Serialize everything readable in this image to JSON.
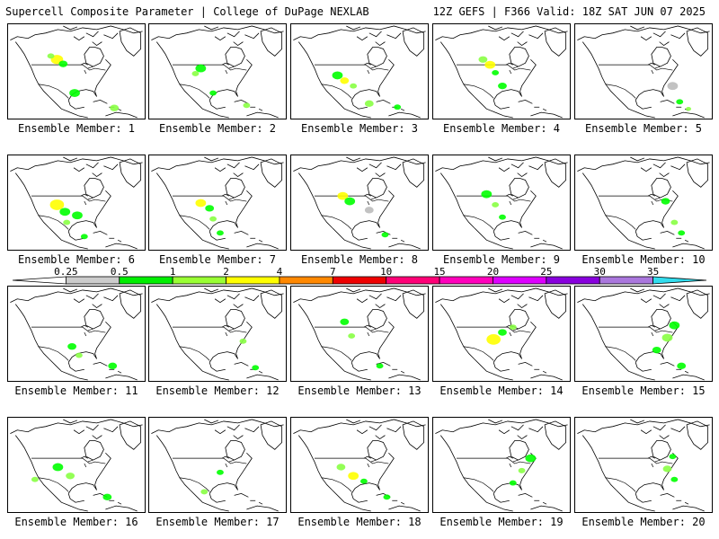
{
  "header": {
    "left": "Supercell Composite Parameter | College of DuPage NEXLAB",
    "right": "12Z GEFS | F366 Valid: 18Z SAT JUN 07 2025"
  },
  "member_label_prefix": "Ensemble Member: ",
  "members": [
    {
      "n": "1",
      "blobs": [
        [
          55,
          40,
          7,
          "#ffff00"
        ],
        [
          62,
          45,
          5,
          "#00ff00"
        ],
        [
          48,
          36,
          4,
          "#88ff44"
        ],
        [
          75,
          78,
          6,
          "#00ff00"
        ],
        [
          120,
          95,
          5,
          "#88ff44"
        ]
      ]
    },
    {
      "n": "2",
      "blobs": [
        [
          58,
          50,
          6,
          "#00ff00"
        ],
        [
          52,
          56,
          4,
          "#88ff44"
        ],
        [
          72,
          78,
          4,
          "#00ff00"
        ],
        [
          110,
          92,
          4,
          "#88ff44"
        ]
      ]
    },
    {
      "n": "3",
      "blobs": [
        [
          52,
          58,
          6,
          "#00ff00"
        ],
        [
          60,
          64,
          5,
          "#ffff00"
        ],
        [
          70,
          70,
          4,
          "#88ff44"
        ],
        [
          88,
          90,
          5,
          "#88ff44"
        ],
        [
          120,
          94,
          4,
          "#00ff00"
        ]
      ]
    },
    {
      "n": "4",
      "blobs": [
        [
          56,
          40,
          5,
          "#88ff44"
        ],
        [
          64,
          46,
          6,
          "#ffff00"
        ],
        [
          70,
          55,
          4,
          "#00ff00"
        ],
        [
          78,
          70,
          5,
          "#00ff00"
        ]
      ]
    },
    {
      "n": "5",
      "blobs": [
        [
          110,
          70,
          6,
          "#bbbbbb"
        ],
        [
          118,
          88,
          4,
          "#00ff00"
        ],
        [
          128,
          96,
          3,
          "#88ff44"
        ]
      ]
    },
    {
      "n": "6",
      "blobs": [
        [
          55,
          56,
          8,
          "#ffff00"
        ],
        [
          64,
          64,
          6,
          "#00ff00"
        ],
        [
          78,
          68,
          6,
          "#00ff00"
        ],
        [
          66,
          76,
          4,
          "#88ff44"
        ],
        [
          86,
          92,
          4,
          "#00ff00"
        ]
      ]
    },
    {
      "n": "7",
      "blobs": [
        [
          58,
          54,
          6,
          "#ffff00"
        ],
        [
          68,
          60,
          5,
          "#00ff00"
        ],
        [
          72,
          72,
          4,
          "#88ff44"
        ],
        [
          80,
          88,
          4,
          "#00ff00"
        ]
      ]
    },
    {
      "n": "8",
      "blobs": [
        [
          58,
          46,
          6,
          "#ffff00"
        ],
        [
          66,
          52,
          6,
          "#00ff00"
        ],
        [
          88,
          62,
          5,
          "#bbbbbb"
        ],
        [
          106,
          90,
          4,
          "#00ff00"
        ]
      ]
    },
    {
      "n": "9",
      "blobs": [
        [
          60,
          44,
          6,
          "#00ff00"
        ],
        [
          70,
          56,
          4,
          "#88ff44"
        ],
        [
          78,
          70,
          4,
          "#00ff00"
        ]
      ]
    },
    {
      "n": "10",
      "blobs": [
        [
          102,
          52,
          5,
          "#00ff00"
        ],
        [
          112,
          76,
          4,
          "#88ff44"
        ],
        [
          120,
          88,
          4,
          "#00ff00"
        ]
      ]
    },
    {
      "n": "11",
      "blobs": [
        [
          72,
          68,
          5,
          "#00ff00"
        ],
        [
          80,
          78,
          4,
          "#88ff44"
        ],
        [
          118,
          90,
          5,
          "#00ff00"
        ]
      ]
    },
    {
      "n": "12",
      "blobs": [
        [
          106,
          62,
          4,
          "#88ff44"
        ],
        [
          120,
          92,
          4,
          "#00ff00"
        ]
      ]
    },
    {
      "n": "13",
      "blobs": [
        [
          60,
          40,
          5,
          "#00ff00"
        ],
        [
          68,
          56,
          4,
          "#88ff44"
        ],
        [
          100,
          90,
          4,
          "#00ff00"
        ]
      ]
    },
    {
      "n": "14",
      "blobs": [
        [
          68,
          60,
          8,
          "#ffff00"
        ],
        [
          78,
          52,
          5,
          "#00ff00"
        ],
        [
          90,
          46,
          4,
          "#88ff44"
        ]
      ]
    },
    {
      "n": "15",
      "blobs": [
        [
          112,
          44,
          6,
          "#00ff00"
        ],
        [
          104,
          58,
          6,
          "#88ff44"
        ],
        [
          92,
          72,
          5,
          "#00ff00"
        ],
        [
          120,
          90,
          5,
          "#00ff00"
        ]
      ]
    },
    {
      "n": "16",
      "blobs": [
        [
          56,
          56,
          6,
          "#00ff00"
        ],
        [
          70,
          66,
          5,
          "#88ff44"
        ],
        [
          30,
          70,
          4,
          "#88ff44"
        ],
        [
          112,
          90,
          5,
          "#00ff00"
        ]
      ]
    },
    {
      "n": "17",
      "blobs": [
        [
          80,
          62,
          4,
          "#00ff00"
        ],
        [
          62,
          84,
          4,
          "#88ff44"
        ]
      ]
    },
    {
      "n": "18",
      "blobs": [
        [
          56,
          56,
          5,
          "#88ff44"
        ],
        [
          70,
          66,
          6,
          "#ffff00"
        ],
        [
          82,
          72,
          4,
          "#00ff00"
        ],
        [
          108,
          90,
          4,
          "#00ff00"
        ]
      ]
    },
    {
      "n": "19",
      "blobs": [
        [
          110,
          46,
          6,
          "#00ff00"
        ],
        [
          100,
          60,
          4,
          "#88ff44"
        ],
        [
          90,
          74,
          4,
          "#00ff00"
        ]
      ]
    },
    {
      "n": "20",
      "blobs": [
        [
          110,
          44,
          4,
          "#00ff00"
        ],
        [
          104,
          58,
          5,
          "#88ff44"
        ],
        [
          112,
          70,
          4,
          "#00ff00"
        ]
      ]
    }
  ],
  "colorbar": {
    "ticks": [
      "0.25",
      "0.5",
      "1",
      "2",
      "4",
      "7",
      "10",
      "15",
      "20",
      "25",
      "30",
      "35"
    ],
    "colors": [
      "#ffffff",
      "#cccccc",
      "#00ee00",
      "#99ff33",
      "#ffff00",
      "#ff8800",
      "#ee0000",
      "#ff0077",
      "#ff00bb",
      "#dd00ff",
      "#8800dd",
      "#aa77dd",
      "#33ddee"
    ]
  }
}
